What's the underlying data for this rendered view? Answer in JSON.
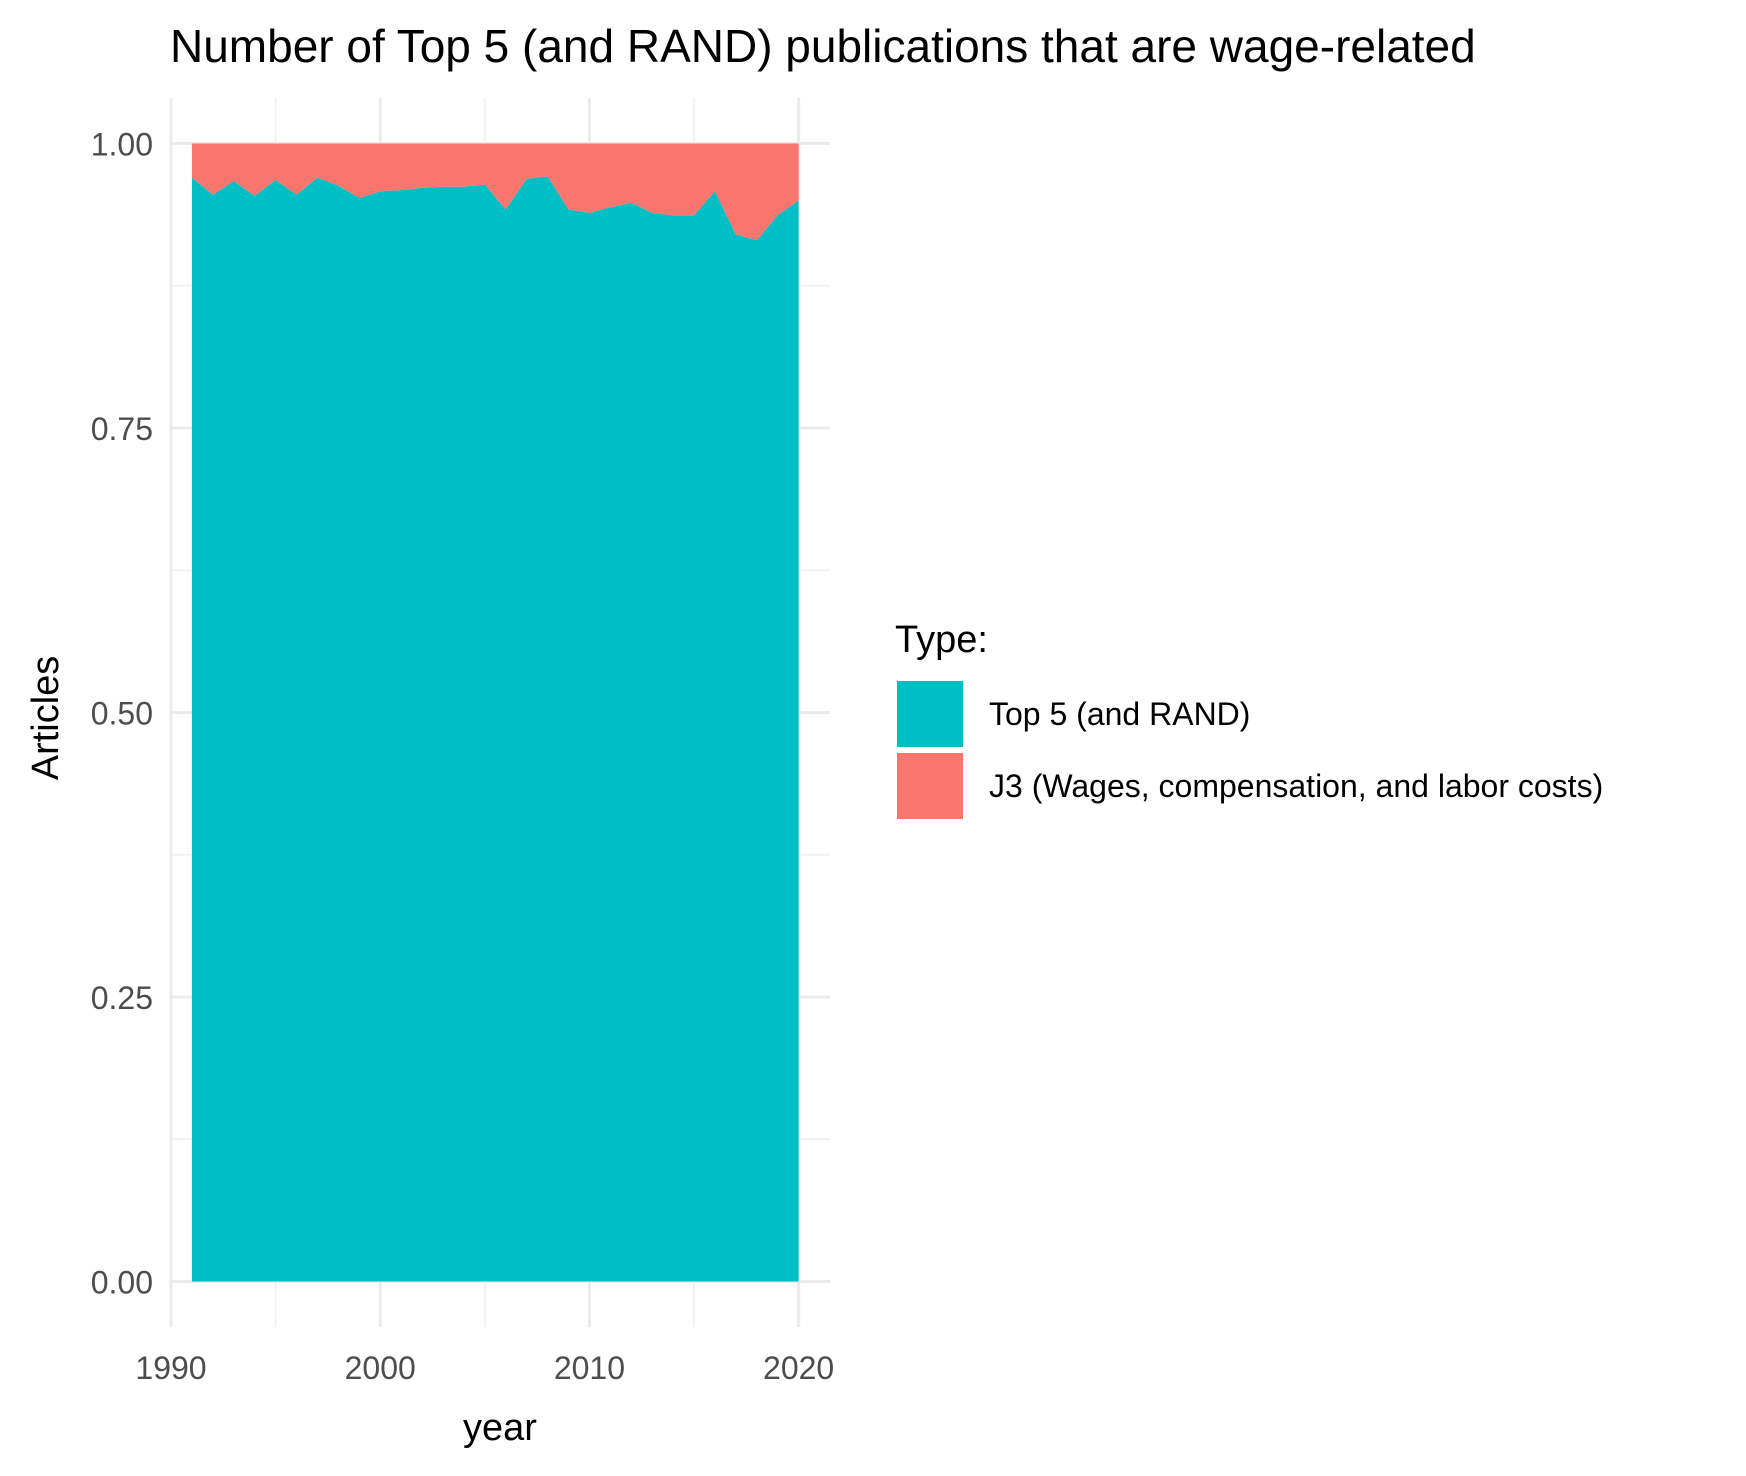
{
  "chart_data": {
    "type": "area",
    "stacked": true,
    "normalized": true,
    "title": "Number of Top 5 (and RAND) publications that are wage-related",
    "xlabel": "year",
    "ylabel": "Articles",
    "xlim": [
      1990.0,
      2021.5
    ],
    "ylim": [
      -0.04,
      1.04
    ],
    "x_ticks": [
      1990,
      2000,
      2010,
      2020
    ],
    "x_tick_labels": [
      "1990",
      "2000",
      "2010",
      "2020"
    ],
    "y_ticks": [
      0,
      0.25,
      0.5,
      0.75,
      1
    ],
    "y_tick_labels": [
      "0.00",
      "0.25",
      "0.50",
      "0.75",
      "1.00"
    ],
    "grid": true,
    "legend": {
      "title": "Type:",
      "position": "right",
      "entries": [
        "Top 5 (and RAND)",
        "J3 (Wages, compensation, and labor costs)"
      ]
    },
    "x": [
      1991,
      1992,
      1993,
      1994,
      1995,
      1996,
      1997,
      1998,
      1999,
      2000,
      2001,
      2002,
      2003,
      2004,
      2005,
      2006,
      2007,
      2008,
      2009,
      2010,
      2011,
      2012,
      2013,
      2014,
      2015,
      2016,
      2017,
      2018,
      2019,
      2020
    ],
    "series": [
      {
        "name": "Top 5 (and RAND)",
        "color": "#00BFC4",
        "values": [
          0.97,
          0.955,
          0.967,
          0.954,
          0.968,
          0.955,
          0.97,
          0.963,
          0.952,
          0.958,
          0.959,
          0.961,
          0.962,
          0.962,
          0.964,
          0.942,
          0.969,
          0.971,
          0.942,
          0.939,
          0.944,
          0.948,
          0.939,
          0.937,
          0.937,
          0.958,
          0.92,
          0.915,
          0.937,
          0.95
        ]
      },
      {
        "name": "J3 (Wages, compensation, and labor costs)",
        "color": "#F8766D",
        "values": [
          0.03,
          0.045,
          0.033,
          0.046,
          0.032,
          0.045,
          0.03,
          0.037,
          0.048,
          0.042,
          0.041,
          0.039,
          0.038,
          0.038,
          0.036,
          0.058,
          0.031,
          0.029,
          0.058,
          0.061,
          0.056,
          0.052,
          0.061,
          0.063,
          0.063,
          0.042,
          0.08,
          0.085,
          0.063,
          0.05
        ]
      }
    ]
  },
  "colors": {
    "grid_major": "#EBEBEB",
    "grid_minor": "#F2F2F2",
    "axis_text": "#4D4D4D",
    "title_text": "#000000"
  }
}
